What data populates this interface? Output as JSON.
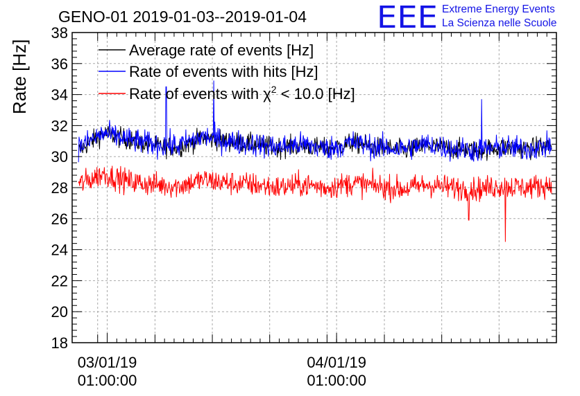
{
  "chart_data": {
    "type": "line",
    "title": "GENO-01 2019-01-03--2019-01-04",
    "ylabel": "Rate [Hz]",
    "xlabel": "",
    "ylim": [
      18,
      38
    ],
    "yticks": [
      18,
      20,
      22,
      24,
      26,
      28,
      30,
      32,
      34,
      36,
      38
    ],
    "xticks": [
      {
        "date": "2019-01-03 01:00:00",
        "line1": "03/01/19",
        "line2": "01:00:00"
      },
      {
        "date": "2019-01-04 01:00:00",
        "line1": "04/01/19",
        "line2": "01:00:00"
      }
    ],
    "x_start": "2019-01-02 21:20:00",
    "x_end": "2019-01-05 00:00:00",
    "grid": true,
    "legend": {
      "placement": "top-left"
    },
    "series": [
      {
        "name": "Average rate of events [Hz]",
        "color": "#000000",
        "x_range": [
          "2019-01-02 22:00:00",
          "2019-01-04 23:30:00"
        ],
        "values": [
          30.4,
          31.5,
          31.1,
          30.7,
          30.6,
          31.2,
          31.0,
          30.8,
          30.6,
          30.7,
          30.5,
          30.9,
          30.6,
          30.4,
          30.7,
          30.5,
          30.4,
          30.6,
          30.5,
          30.7
        ]
      },
      {
        "name": "Rate of events with hits [Hz]",
        "color": "#0000ff",
        "x_range": [
          "2019-01-02 22:00:00",
          "2019-01-04 23:30:00"
        ],
        "values": [
          30.6,
          31.5,
          31.1,
          30.8,
          30.7,
          31.3,
          31.0,
          30.8,
          30.6,
          30.8,
          30.5,
          30.9,
          30.6,
          30.5,
          30.8,
          30.5,
          30.4,
          30.6,
          30.5,
          30.7
        ],
        "spikes": [
          {
            "x": "2019-01-03 07:10:00",
            "y": 34.5
          },
          {
            "x": "2019-01-03 12:10:00",
            "y": 34.9
          },
          {
            "x": "2019-01-04 16:10:00",
            "y": 33.7
          }
        ]
      },
      {
        "name": "Rate of events with χ² < 10.0 [Hz]",
        "name_parts": {
          "pre": "Rate of events with ",
          "sym": "χ",
          "sup": "2",
          "post": " < 10.0 [Hz]"
        },
        "color": "#ff0000",
        "x_range": [
          "2019-01-02 22:00:00",
          "2019-01-04 23:30:00"
        ],
        "values": [
          28.2,
          28.9,
          28.4,
          28.2,
          28.1,
          28.5,
          28.3,
          28.2,
          28.0,
          28.2,
          28.0,
          28.3,
          28.1,
          27.9,
          28.2,
          28.0,
          27.9,
          28.1,
          28.0,
          28.2
        ],
        "spikes": [
          {
            "x": "2019-01-04 18:40:00",
            "y": 24.5
          },
          {
            "x": "2019-01-04 14:50:00",
            "y": 25.9
          }
        ]
      }
    ]
  },
  "logo": {
    "letters": "EEE",
    "line1": "Extreme Energy Events",
    "line2": "La Scienza nelle Scuole",
    "color": "#1414e6"
  }
}
